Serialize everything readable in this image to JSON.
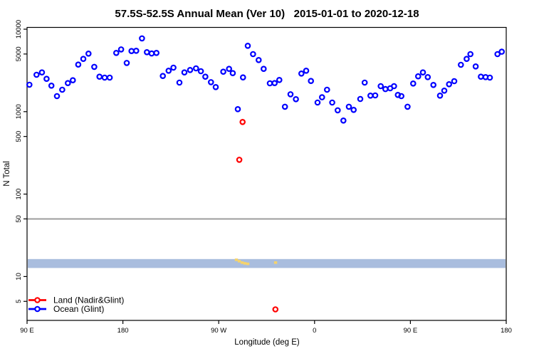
{
  "chart_data": {
    "type": "scatter",
    "title": "57.5S-52.5S Annual Mean (Ver 10)   2015-01-01 to 2020-12-18",
    "xlabel": "Longitude (deg E)",
    "ylabel": "N Total",
    "x_axis": {
      "range_deg": [
        90,
        540
      ],
      "ticks": [
        {
          "deg": 90,
          "label": "90 E"
        },
        {
          "deg": 180,
          "label": "180"
        },
        {
          "deg": 270,
          "label": "90 W"
        },
        {
          "deg": 360,
          "label": "0"
        },
        {
          "deg": 450,
          "label": "90 E"
        },
        {
          "deg": 540,
          "label": "180"
        }
      ]
    },
    "y_axis": {
      "scale": "log",
      "range": [
        3,
        10500
      ],
      "ticks": [
        {
          "value": 10000,
          "label": "10000"
        },
        {
          "value": 5000,
          "label": "5000"
        },
        {
          "value": 1000,
          "label": "1000"
        },
        {
          "value": 500,
          "label": "500"
        },
        {
          "value": 100,
          "label": "100"
        },
        {
          "value": 50,
          "label": "50"
        },
        {
          "value": 10,
          "label": "10"
        },
        {
          "value": 5,
          "label": "5"
        }
      ]
    },
    "reference_line": {
      "value": 50,
      "color": "#9c9c9c"
    },
    "highlight_band": {
      "value_from": 12.7,
      "value_to": 16.3,
      "color": "#a9bdde"
    },
    "grid": false,
    "legend": {
      "position": "bottom-left",
      "entries": [
        {
          "label": "Land (Nadir&Glint)",
          "color": "#ff0000"
        },
        {
          "label": "Ocean (Glint)",
          "color": "#0000ff"
        }
      ]
    },
    "series": [
      {
        "name": "Ocean (Glint)",
        "marker": "open-circle",
        "color": "#0000ff",
        "points": [
          [
            92.2,
            2120
          ],
          [
            98.9,
            2800
          ],
          [
            104.0,
            2990
          ],
          [
            108.3,
            2500
          ],
          [
            112.9,
            2065
          ],
          [
            118.1,
            1542
          ],
          [
            123.0,
            1845
          ],
          [
            128.3,
            2220
          ],
          [
            133.0,
            2404
          ],
          [
            138.1,
            3724
          ],
          [
            142.8,
            4365
          ],
          [
            147.7,
            5058
          ],
          [
            153.1,
            3490
          ],
          [
            158.0,
            2655
          ],
          [
            162.9,
            2588
          ],
          [
            167.6,
            2588
          ],
          [
            173.8,
            5155
          ],
          [
            178.3,
            5690
          ],
          [
            183.6,
            3900
          ],
          [
            188.1,
            5430
          ],
          [
            192.5,
            5470
          ],
          [
            197.9,
            7730
          ],
          [
            202.5,
            5260
          ],
          [
            207.0,
            5080
          ],
          [
            211.5,
            5155
          ],
          [
            217.5,
            2710
          ],
          [
            222.9,
            3140
          ],
          [
            227.5,
            3420
          ],
          [
            233.1,
            2250
          ],
          [
            237.8,
            2990
          ],
          [
            243.1,
            3200
          ],
          [
            248.7,
            3350
          ],
          [
            253.2,
            3095
          ],
          [
            257.4,
            2655
          ],
          [
            262.7,
            2280
          ],
          [
            267.2,
            1986
          ],
          [
            274.3,
            3050
          ],
          [
            279.7,
            3305
          ],
          [
            283.2,
            2930
          ],
          [
            287.9,
            1072
          ],
          [
            292.8,
            2600
          ],
          [
            297.3,
            6295
          ],
          [
            302.2,
            4989
          ],
          [
            307.5,
            4227
          ],
          [
            312.2,
            3305
          ],
          [
            318.0,
            2208
          ],
          [
            322.5,
            2220
          ],
          [
            326.9,
            2421
          ],
          [
            332.2,
            1146
          ],
          [
            337.4,
            1626
          ],
          [
            342.5,
            1416
          ],
          [
            347.6,
            2897
          ],
          [
            352.1,
            3140
          ],
          [
            356.6,
            2355
          ],
          [
            362.8,
            1291
          ],
          [
            367.0,
            1493
          ],
          [
            371.7,
            1845
          ],
          [
            376.6,
            1291
          ],
          [
            381.7,
            1038
          ],
          [
            387.1,
            780
          ],
          [
            392.2,
            1146
          ],
          [
            396.7,
            1052
          ],
          [
            402.9,
            1426
          ],
          [
            407.1,
            2250
          ],
          [
            412.5,
            1563
          ],
          [
            417.0,
            1574
          ],
          [
            422.1,
            2037
          ],
          [
            426.5,
            1880
          ],
          [
            431.0,
            1919
          ],
          [
            434.6,
            2037
          ],
          [
            438.2,
            1596
          ],
          [
            441.5,
            1542
          ],
          [
            447.3,
            1146
          ],
          [
            452.6,
            2193
          ],
          [
            457.3,
            2679
          ],
          [
            461.8,
            2992
          ],
          [
            466.3,
            2624
          ],
          [
            471.6,
            2109
          ],
          [
            477.8,
            1563
          ],
          [
            481.8,
            1799
          ],
          [
            486.3,
            2152
          ],
          [
            491.2,
            2344
          ],
          [
            497.4,
            3699
          ],
          [
            502.8,
            4365
          ],
          [
            506.4,
            4989
          ],
          [
            511.3,
            3532
          ],
          [
            516.2,
            2655
          ],
          [
            520.6,
            2624
          ],
          [
            524.6,
            2588
          ],
          [
            531.8,
            4989
          ],
          [
            535.8,
            5330
          ]
        ]
      },
      {
        "name": "Land (Nadir&Glint)",
        "marker": "open-circle",
        "color": "#ff0000",
        "points": [
          [
            292.4,
            750
          ],
          [
            289.3,
            261
          ],
          [
            323.2,
            4
          ]
        ]
      },
      {
        "name": "band-marks",
        "marker": "small-square",
        "color": "#f5d36c",
        "points": [
          [
            286.6,
            15.9
          ],
          [
            289.3,
            15.3
          ],
          [
            292.0,
            14.7
          ],
          [
            294.6,
            14.4
          ],
          [
            297.3,
            14.2
          ],
          [
            323.4,
            14.7
          ]
        ]
      }
    ]
  }
}
